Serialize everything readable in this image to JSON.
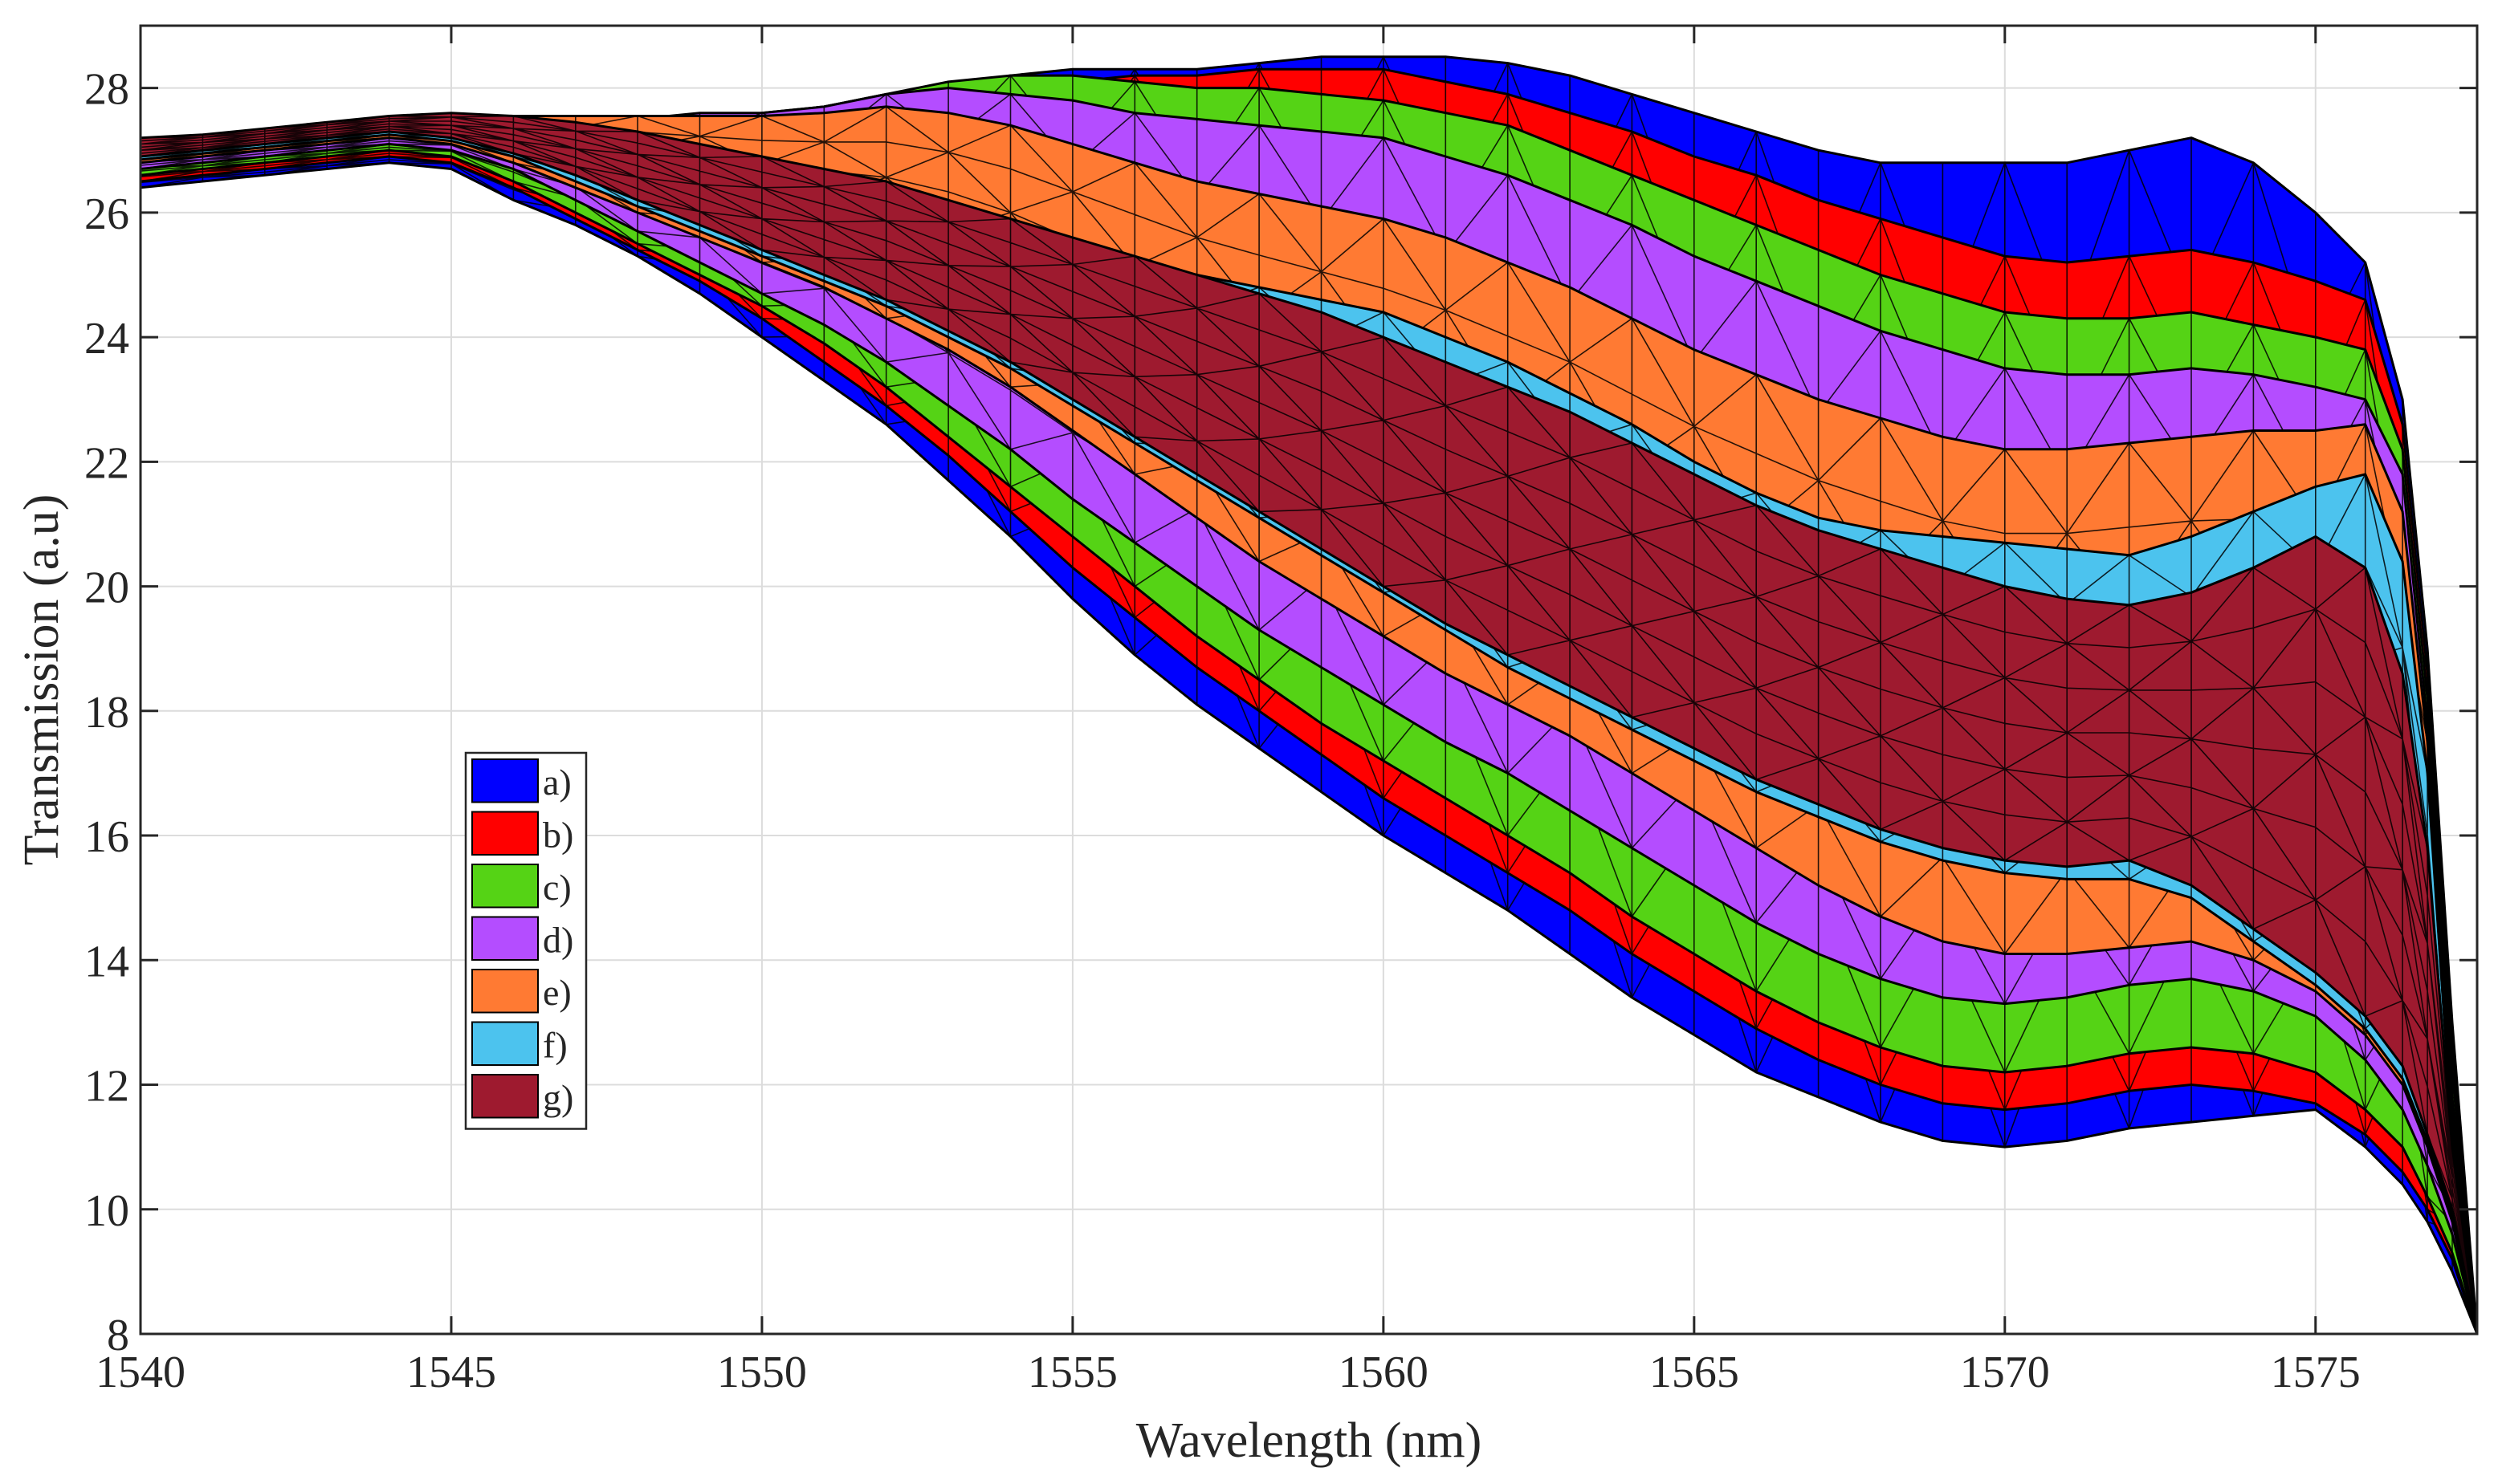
{
  "chart_data": {
    "type": "area",
    "title": "",
    "xlabel": "Wavelength (nm)",
    "ylabel": "Transmission (a.u)",
    "xlim": [
      1540,
      1577.6
    ],
    "ylim": [
      8,
      29
    ],
    "grid": true,
    "legend_position": "lower-left",
    "x_ticks": [
      "1540",
      "1545",
      "1550",
      "1555",
      "1560",
      "1565",
      "1570",
      "1575"
    ],
    "y_ticks": [
      "8",
      "10",
      "12",
      "14",
      "16",
      "18",
      "20",
      "22",
      "24",
      "26",
      "28"
    ],
    "x": [
      1540,
      1541,
      1542,
      1543,
      1544,
      1545,
      1546,
      1547,
      1548,
      1549,
      1550,
      1551,
      1552,
      1553,
      1554,
      1555,
      1556,
      1557,
      1558,
      1559,
      1560,
      1561,
      1562,
      1563,
      1564,
      1565,
      1566,
      1567,
      1568,
      1569,
      1570,
      1571,
      1572,
      1573,
      1574,
      1575,
      1575.8,
      1576.4,
      1576.8,
      1577.2,
      1577.6
    ],
    "series": [
      {
        "name": "a)",
        "color": "#0000ff",
        "upper": [
          26.9,
          26.9,
          26.9,
          27.0,
          27.1,
          27.2,
          27.2,
          27.2,
          27.2,
          27.3,
          27.4,
          27.6,
          27.8,
          28.0,
          28.2,
          28.3,
          28.3,
          28.3,
          28.4,
          28.5,
          28.5,
          28.5,
          28.4,
          28.2,
          27.9,
          27.6,
          27.3,
          27.0,
          26.8,
          26.8,
          26.8,
          26.8,
          27.0,
          27.2,
          26.8,
          26.0,
          25.2,
          23.0,
          19.0,
          13.0,
          8.0
        ],
        "lower": [
          26.4,
          26.5,
          26.6,
          26.7,
          26.8,
          26.7,
          26.2,
          25.8,
          25.3,
          24.7,
          24.0,
          23.3,
          22.6,
          21.7,
          20.8,
          19.8,
          18.9,
          18.1,
          17.4,
          16.7,
          16.0,
          15.4,
          14.8,
          14.1,
          13.4,
          12.8,
          12.2,
          11.8,
          11.4,
          11.1,
          11.0,
          11.1,
          11.3,
          11.4,
          11.5,
          11.6,
          11.0,
          10.4,
          9.8,
          9.0,
          8.0
        ]
      },
      {
        "name": "b)",
        "color": "#ff0000",
        "upper": [
          26.95,
          26.95,
          27.0,
          27.1,
          27.2,
          27.3,
          27.3,
          27.3,
          27.3,
          27.4,
          27.5,
          27.6,
          27.8,
          28.0,
          28.1,
          28.1,
          28.2,
          28.2,
          28.3,
          28.3,
          28.3,
          28.1,
          27.9,
          27.6,
          27.3,
          26.9,
          26.6,
          26.2,
          25.9,
          25.6,
          25.3,
          25.2,
          25.3,
          25.4,
          25.2,
          24.9,
          24.6,
          22.6,
          18.6,
          12.6,
          8.0
        ],
        "lower": [
          26.5,
          26.6,
          26.7,
          26.8,
          26.9,
          26.8,
          26.4,
          25.9,
          25.4,
          24.9,
          24.3,
          23.6,
          22.9,
          22.1,
          21.2,
          20.3,
          19.5,
          18.7,
          18.0,
          17.3,
          16.6,
          16.0,
          15.4,
          14.8,
          14.1,
          13.5,
          12.9,
          12.4,
          12.0,
          11.7,
          11.6,
          11.7,
          11.9,
          12.0,
          11.9,
          11.7,
          11.2,
          10.6,
          10.0,
          9.2,
          8.0
        ]
      },
      {
        "name": "c)",
        "color": "#55d315",
        "upper": [
          27.0,
          27.0,
          27.1,
          27.2,
          27.3,
          27.4,
          27.4,
          27.4,
          27.4,
          27.5,
          27.6,
          27.7,
          27.9,
          28.1,
          28.2,
          28.2,
          28.1,
          28.0,
          28.0,
          27.9,
          27.8,
          27.6,
          27.4,
          27.0,
          26.6,
          26.2,
          25.8,
          25.4,
          25.0,
          24.7,
          24.4,
          24.3,
          24.3,
          24.4,
          24.2,
          24.0,
          23.8,
          22.2,
          18.2,
          12.2,
          8.0
        ],
        "lower": [
          26.6,
          26.7,
          26.8,
          26.9,
          27.0,
          26.9,
          26.5,
          26.0,
          25.5,
          25.0,
          24.5,
          23.9,
          23.2,
          22.4,
          21.6,
          20.8,
          20.0,
          19.2,
          18.5,
          17.8,
          17.2,
          16.6,
          16.0,
          15.4,
          14.7,
          14.1,
          13.5,
          13.0,
          12.6,
          12.3,
          12.2,
          12.3,
          12.5,
          12.6,
          12.5,
          12.2,
          11.6,
          11.0,
          10.2,
          9.3,
          8.0
        ]
      },
      {
        "name": "d)",
        "color": "#b44dff",
        "upper": [
          27.05,
          27.1,
          27.2,
          27.3,
          27.4,
          27.5,
          27.5,
          27.5,
          27.5,
          27.6,
          27.6,
          27.7,
          27.9,
          28.0,
          27.9,
          27.8,
          27.6,
          27.5,
          27.4,
          27.3,
          27.2,
          26.9,
          26.6,
          26.2,
          25.8,
          25.3,
          24.9,
          24.5,
          24.1,
          23.8,
          23.5,
          23.4,
          23.4,
          23.5,
          23.4,
          23.2,
          23.0,
          21.8,
          17.8,
          11.8,
          8.0
        ],
        "lower": [
          26.7,
          26.8,
          26.9,
          27.0,
          27.1,
          27.0,
          26.7,
          26.2,
          25.7,
          25.2,
          24.7,
          24.2,
          23.6,
          22.9,
          22.2,
          21.4,
          20.7,
          20.0,
          19.3,
          18.7,
          18.1,
          17.5,
          17.0,
          16.4,
          15.8,
          15.2,
          14.6,
          14.1,
          13.7,
          13.4,
          13.3,
          13.4,
          13.6,
          13.7,
          13.5,
          13.1,
          12.4,
          11.6,
          10.7,
          9.6,
          8.0
        ]
      },
      {
        "name": "e)",
        "color": "#ff7a33",
        "upper": [
          27.1,
          27.15,
          27.25,
          27.35,
          27.45,
          27.55,
          27.55,
          27.55,
          27.55,
          27.55,
          27.55,
          27.6,
          27.7,
          27.6,
          27.4,
          27.1,
          26.8,
          26.5,
          26.3,
          26.1,
          25.9,
          25.6,
          25.2,
          24.8,
          24.3,
          23.8,
          23.4,
          23.0,
          22.7,
          22.4,
          22.2,
          22.2,
          22.3,
          22.4,
          22.5,
          22.5,
          22.6,
          21.2,
          17.5,
          11.5,
          8.0
        ],
        "lower": [
          26.8,
          26.9,
          27.0,
          27.1,
          27.2,
          27.1,
          26.8,
          26.4,
          26.0,
          25.6,
          25.2,
          24.8,
          24.3,
          23.8,
          23.2,
          22.5,
          21.8,
          21.1,
          20.4,
          19.8,
          19.2,
          18.6,
          18.1,
          17.6,
          17.0,
          16.4,
          15.8,
          15.2,
          14.7,
          14.3,
          14.1,
          14.1,
          14.2,
          14.3,
          14.0,
          13.5,
          12.8,
          12.0,
          11.0,
          9.8,
          8.0
        ]
      },
      {
        "name": "f)",
        "color": "#4cc3ee",
        "upper": [
          27.15,
          27.2,
          27.3,
          27.4,
          27.5,
          27.55,
          27.5,
          27.4,
          27.2,
          27.0,
          26.8,
          26.6,
          26.4,
          26.1,
          25.8,
          25.5,
          25.2,
          25.0,
          24.8,
          24.6,
          24.4,
          24.0,
          23.6,
          23.1,
          22.6,
          22.0,
          21.5,
          21.1,
          20.9,
          20.8,
          20.7,
          20.6,
          20.5,
          20.8,
          21.2,
          21.6,
          21.8,
          20.4,
          17.0,
          11.2,
          8.0
        ],
        "lower": [
          26.85,
          26.95,
          27.05,
          27.15,
          27.25,
          27.15,
          26.9,
          26.5,
          26.1,
          25.7,
          25.3,
          24.9,
          24.5,
          24.0,
          23.5,
          22.9,
          22.3,
          21.7,
          21.1,
          20.5,
          19.9,
          19.3,
          18.7,
          18.2,
          17.7,
          17.2,
          16.7,
          16.3,
          15.9,
          15.6,
          15.4,
          15.3,
          15.3,
          15.0,
          14.3,
          13.6,
          12.9,
          12.1,
          11.1,
          9.9,
          8.0
        ]
      },
      {
        "name": "g)",
        "color": "#9e1a2f",
        "upper": [
          27.2,
          27.25,
          27.35,
          27.45,
          27.55,
          27.6,
          27.55,
          27.45,
          27.3,
          27.1,
          26.9,
          26.7,
          26.5,
          26.2,
          25.9,
          25.6,
          25.3,
          25.0,
          24.7,
          24.4,
          24.0,
          23.6,
          23.2,
          22.8,
          22.3,
          21.8,
          21.3,
          20.9,
          20.6,
          20.3,
          20.0,
          19.8,
          19.7,
          19.9,
          20.3,
          20.8,
          20.3,
          18.6,
          15.8,
          11.0,
          8.0
        ],
        "lower": [
          26.9,
          27.0,
          27.1,
          27.2,
          27.3,
          27.2,
          26.95,
          26.6,
          26.2,
          25.8,
          25.4,
          25.0,
          24.6,
          24.1,
          23.6,
          23.0,
          22.4,
          21.8,
          21.2,
          20.6,
          20.0,
          19.4,
          18.9,
          18.4,
          17.9,
          17.4,
          16.9,
          16.5,
          16.1,
          15.8,
          15.6,
          15.5,
          15.6,
          15.2,
          14.5,
          13.8,
          13.1,
          12.3,
          11.2,
          10.0,
          8.0
        ]
      }
    ]
  }
}
